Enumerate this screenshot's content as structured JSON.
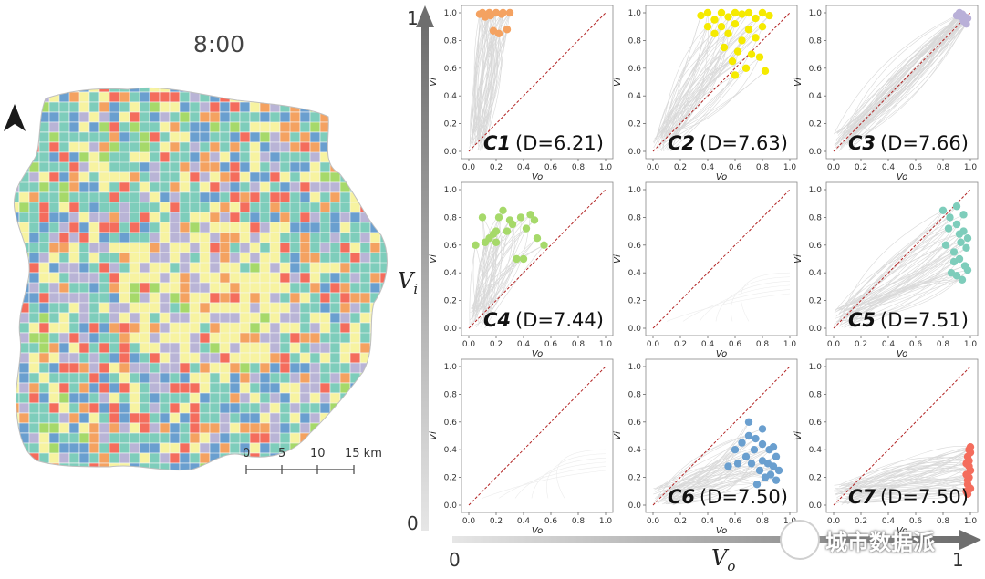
{
  "map": {
    "time_label": "8:00",
    "scale_ticks": [
      "0",
      "5",
      "10",
      "15 km"
    ],
    "palette": [
      "#7ecdbb",
      "#7ecdbb",
      "#7ecdbb",
      "#7ecdbb",
      "#6a9fcf",
      "#6a9fcf",
      "#b9b4d6",
      "#f7f3a1",
      "#f7f3a1",
      "#f46d5d",
      "#f4a261",
      "#a6d96a"
    ]
  },
  "axes": {
    "vi_label": "V",
    "vi_sub": "i",
    "vo_label": "V",
    "vo_sub": "o",
    "vi_top": "1",
    "vi_bottom": "0",
    "vo_left": "0",
    "vo_right": "1"
  },
  "watermark": "城市数据派",
  "chart_data": [
    {
      "type": "scatter",
      "id": "C1",
      "label": "C1",
      "d_value": "6.21",
      "d_text": "(D=6.21)",
      "color": "#f4a261",
      "x": [
        0.1,
        0.15,
        0.2,
        0.25,
        0.3,
        0.12,
        0.18,
        0.22,
        0.28,
        0.08,
        0.16,
        0.24
      ],
      "y": [
        1.0,
        1.0,
        1.0,
        1.0,
        1.0,
        0.97,
        0.87,
        0.85,
        0.88,
        0.99,
        0.98,
        0.99
      ],
      "xlim": [
        0,
        1
      ],
      "ylim": [
        0,
        1
      ],
      "xlabel": "Vo",
      "ylabel": "Vi",
      "xticks": [
        "0.0",
        "0.2",
        "0.4",
        "0.6",
        "0.8",
        "1.0"
      ],
      "yticks": [
        "0.0",
        "0.2",
        "0.4",
        "0.6",
        "0.8",
        "1.0"
      ]
    },
    {
      "type": "scatter",
      "id": "C2",
      "label": "C2",
      "d_value": "7.63",
      "d_text": "(D=7.63)",
      "color": "#f5ea00",
      "x": [
        0.35,
        0.4,
        0.45,
        0.5,
        0.55,
        0.6,
        0.65,
        0.7,
        0.75,
        0.8,
        0.85,
        0.4,
        0.5,
        0.6,
        0.7,
        0.8,
        0.45,
        0.55,
        0.65,
        0.75,
        0.52,
        0.62,
        0.72,
        0.58,
        0.68,
        0.78,
        0.82,
        0.6
      ],
      "y": [
        0.98,
        1.0,
        0.95,
        1.0,
        0.97,
        1.0,
        0.99,
        1.0,
        0.96,
        1.0,
        0.98,
        0.9,
        0.9,
        0.92,
        0.88,
        0.9,
        0.85,
        0.85,
        0.8,
        0.82,
        0.75,
        0.72,
        0.7,
        0.65,
        0.6,
        0.68,
        0.58,
        0.55
      ],
      "xlim": [
        0,
        1
      ],
      "ylim": [
        0,
        1
      ],
      "xlabel": "Vo",
      "ylabel": "Vi",
      "xticks": [
        "0.0",
        "0.2",
        "0.4",
        "0.6",
        "0.8",
        "1.0"
      ],
      "yticks": [
        "0.0",
        "0.2",
        "0.4",
        "0.6",
        "0.8",
        "1.0"
      ]
    },
    {
      "type": "scatter",
      "id": "C3",
      "label": "C3",
      "d_value": "7.66",
      "d_text": "(D=7.66)",
      "color": "#b9b0d8",
      "x": [
        0.9,
        0.92,
        0.94,
        0.96,
        0.98,
        0.95,
        0.93,
        0.97
      ],
      "y": [
        0.98,
        1.0,
        0.99,
        0.97,
        0.96,
        0.94,
        0.97,
        0.92
      ],
      "xlim": [
        0,
        1
      ],
      "ylim": [
        0,
        1
      ],
      "xlabel": "Vo",
      "ylabel": "Vi",
      "xticks": [
        "0.0",
        "0.2",
        "0.4",
        "0.6",
        "0.8",
        "1.0"
      ],
      "yticks": [
        "0.0",
        "0.2",
        "0.4",
        "0.6",
        "0.8",
        "1.0"
      ]
    },
    {
      "type": "scatter",
      "id": "C4",
      "label": "C4",
      "d_value": "7.44",
      "d_text": "(D=7.44)",
      "color": "#a6d96a",
      "x": [
        0.05,
        0.1,
        0.15,
        0.2,
        0.25,
        0.3,
        0.12,
        0.18,
        0.22,
        0.32,
        0.38,
        0.42,
        0.45,
        0.5,
        0.55,
        0.35,
        0.4,
        0.28,
        0.2,
        0.48
      ],
      "y": [
        0.6,
        0.8,
        0.65,
        0.7,
        0.85,
        0.78,
        0.62,
        0.68,
        0.8,
        0.75,
        0.8,
        0.72,
        0.82,
        0.65,
        0.6,
        0.5,
        0.5,
        0.7,
        0.62,
        0.78
      ],
      "xlim": [
        0,
        1
      ],
      "ylim": [
        0,
        1
      ],
      "xlabel": "Vo",
      "ylabel": "Vi",
      "xticks": [
        "0.0",
        "0.2",
        "0.4",
        "0.6",
        "0.8",
        "1.0"
      ],
      "yticks": [
        "0.0",
        "0.2",
        "0.4",
        "0.6",
        "0.8",
        "1.0"
      ]
    },
    {
      "type": "scatter",
      "id": "C5-empty",
      "label": "",
      "d_value": "",
      "d_text": "",
      "color": "#cccccc",
      "x": [],
      "y": [],
      "xlim": [
        0,
        1
      ],
      "ylim": [
        0,
        1
      ],
      "xlabel": "Vo",
      "ylabel": "Vi",
      "xticks": [
        "0.0",
        "0.2",
        "0.4",
        "0.6",
        "0.8",
        "1.0"
      ],
      "yticks": [
        "0.0",
        "0.2",
        "0.4",
        "0.6",
        "0.8",
        "1.0"
      ]
    },
    {
      "type": "scatter",
      "id": "C5",
      "label": "C5",
      "d_value": "7.51",
      "d_text": "(D=7.51)",
      "color": "#7ecdbb",
      "x": [
        0.8,
        0.85,
        0.9,
        0.95,
        0.98,
        0.82,
        0.88,
        0.92,
        0.96,
        0.86,
        0.9,
        0.94,
        0.98,
        0.84,
        0.92,
        0.97,
        0.9,
        0.95,
        0.88,
        0.93
      ],
      "y": [
        0.85,
        0.8,
        0.75,
        0.7,
        0.65,
        0.6,
        0.55,
        0.5,
        0.45,
        0.4,
        0.38,
        0.35,
        0.42,
        0.72,
        0.68,
        0.58,
        0.88,
        0.82,
        0.48,
        0.62
      ],
      "xlim": [
        0,
        1
      ],
      "ylim": [
        0,
        1
      ],
      "xlabel": "Vo",
      "ylabel": "Vi",
      "xticks": [
        "0.0",
        "0.2",
        "0.4",
        "0.6",
        "0.8",
        "1.0"
      ],
      "yticks": [
        "0.0",
        "0.2",
        "0.4",
        "0.6",
        "0.8",
        "1.0"
      ]
    },
    {
      "type": "scatter",
      "id": "C6-empty",
      "label": "",
      "d_value": "",
      "d_text": "",
      "color": "#cccccc",
      "x": [],
      "y": [],
      "xlim": [
        0,
        1
      ],
      "ylim": [
        0,
        1
      ],
      "xlabel": "Vo",
      "ylabel": "Vi",
      "xticks": [
        "0.0",
        "0.2",
        "0.4",
        "0.6",
        "0.8",
        "1.0"
      ],
      "yticks": [
        "0.0",
        "0.2",
        "0.4",
        "0.6",
        "0.8",
        "1.0"
      ]
    },
    {
      "type": "scatter",
      "id": "C6",
      "label": "C6",
      "d_value": "7.50",
      "d_text": "(D=7.50)",
      "color": "#6a9fcf",
      "x": [
        0.55,
        0.6,
        0.65,
        0.7,
        0.75,
        0.8,
        0.85,
        0.9,
        0.72,
        0.78,
        0.82,
        0.88,
        0.68,
        0.74,
        0.8,
        0.86,
        0.9,
        0.76,
        0.84,
        0.7,
        0.62,
        0.8,
        0.88,
        0.92
      ],
      "y": [
        0.28,
        0.4,
        0.45,
        0.5,
        0.48,
        0.44,
        0.4,
        0.35,
        0.3,
        0.25,
        0.2,
        0.28,
        0.35,
        0.4,
        0.32,
        0.22,
        0.18,
        0.15,
        0.3,
        0.6,
        0.3,
        0.55,
        0.42,
        0.25
      ],
      "xlim": [
        0,
        1
      ],
      "ylim": [
        0,
        1
      ],
      "xlabel": "Vo",
      "ylabel": "Vi",
      "xticks": [
        "0.0",
        "0.2",
        "0.4",
        "0.6",
        "0.8",
        "1.0"
      ],
      "yticks": [
        "0.0",
        "0.2",
        "0.4",
        "0.6",
        "0.8",
        "1.0"
      ]
    },
    {
      "type": "scatter",
      "id": "C7",
      "label": "C7",
      "d_value": "7.50",
      "d_text": "(D=7.50)",
      "color": "#f46d5d",
      "x": [
        0.97,
        0.98,
        0.99,
        1.0,
        0.97,
        0.98,
        0.99,
        1.0,
        0.98,
        0.99,
        1.0,
        0.97,
        0.99,
        1.0,
        0.98
      ],
      "y": [
        0.1,
        0.15,
        0.2,
        0.25,
        0.3,
        0.35,
        0.4,
        0.42,
        0.18,
        0.28,
        0.12,
        0.22,
        0.32,
        0.38,
        0.08
      ],
      "xlim": [
        0,
        1
      ],
      "ylim": [
        0,
        1
      ],
      "xlabel": "Vo",
      "ylabel": "Vi",
      "xticks": [
        "0.0",
        "0.2",
        "0.4",
        "0.6",
        "0.8",
        "1.0"
      ],
      "yticks": [
        "0.0",
        "0.2",
        "0.4",
        "0.6",
        "0.8",
        "1.0"
      ]
    }
  ]
}
